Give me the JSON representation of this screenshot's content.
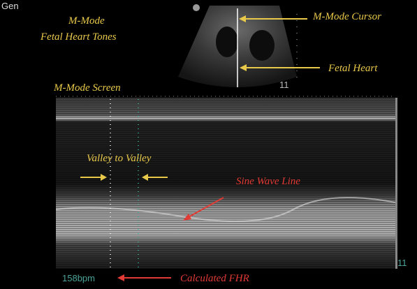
{
  "header": {
    "preset": "Gen"
  },
  "labels": {
    "mode": "M-Mode",
    "subject": "Fetal Heart Tones",
    "cursor": "M-Mode Cursor",
    "heart": "Fetal Heart",
    "screen": "M-Mode Screen",
    "valley": "Valley to Valley",
    "sine": "Sine Wave Line",
    "fhr": "Calculated FHR"
  },
  "readouts": {
    "depth_top": "11",
    "depth_bottom": "11",
    "heart_rate": "158bpm"
  }
}
